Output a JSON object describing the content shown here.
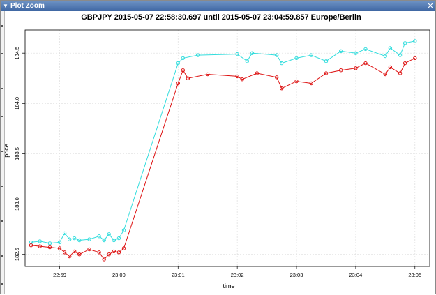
{
  "window": {
    "title": "Plot Zoom",
    "collapse_icon": "triangle-down-icon",
    "close_icon": "close-icon"
  },
  "chart_data": {
    "type": "line",
    "title": "GBPJPY  2015-05-07 22:58:30.697 until 2015-05-07 23:04:59.857 Europe/Berlin",
    "xlabel": "time",
    "ylabel": "price",
    "xlim": [
      "22:58:25",
      "23:05:15"
    ],
    "ylim": [
      182.38,
      184.73
    ],
    "x_ticks": [
      "22:59",
      "23:00",
      "23:01",
      "23:02",
      "23:03",
      "23:04",
      "23:05"
    ],
    "y_ticks": [
      "182.5",
      "183.0",
      "183.5",
      "184.0",
      "184.5"
    ],
    "grid": true,
    "legend": "none",
    "series": [
      {
        "color": "#33dddd",
        "marker": "circle",
        "x": [
          "22:58:31",
          "22:58:40",
          "22:58:50",
          "22:59:00",
          "22:59:05",
          "22:59:10",
          "22:59:15",
          "22:59:20",
          "22:59:30",
          "22:59:40",
          "22:59:45",
          "22:59:50",
          "22:59:55",
          "23:00:00",
          "23:00:05",
          "23:01:00",
          "23:01:05",
          "23:01:20",
          "23:02:00",
          "23:02:10",
          "23:02:15",
          "23:02:40",
          "23:02:45",
          "23:03:00",
          "23:03:15",
          "23:03:30",
          "23:03:45",
          "23:04:00",
          "23:04:10",
          "23:04:30",
          "23:04:35",
          "23:04:45",
          "23:04:50",
          "23:05:00"
        ],
        "y": [
          182.62,
          182.63,
          182.61,
          182.62,
          182.71,
          182.65,
          182.66,
          182.64,
          182.65,
          182.68,
          182.64,
          182.7,
          182.64,
          182.66,
          182.74,
          184.4,
          184.45,
          184.48,
          184.49,
          184.42,
          184.5,
          184.48,
          184.4,
          184.45,
          184.48,
          184.42,
          184.52,
          184.5,
          184.54,
          184.47,
          184.55,
          184.48,
          184.6,
          184.62
        ]
      },
      {
        "color": "#dd1111",
        "marker": "circle",
        "x": [
          "22:58:31",
          "22:58:40",
          "22:58:50",
          "22:59:00",
          "22:59:05",
          "22:59:10",
          "22:59:15",
          "22:59:20",
          "22:59:30",
          "22:59:40",
          "22:59:45",
          "22:59:50",
          "22:59:55",
          "23:00:00",
          "23:00:05",
          "23:01:00",
          "23:01:05",
          "23:01:10",
          "23:01:30",
          "23:02:00",
          "23:02:05",
          "23:02:20",
          "23:02:40",
          "23:02:45",
          "23:03:00",
          "23:03:15",
          "23:03:30",
          "23:03:45",
          "23:04:00",
          "23:04:10",
          "23:04:30",
          "23:04:35",
          "23:04:45",
          "23:04:50",
          "23:05:00"
        ],
        "y": [
          182.59,
          182.58,
          182.57,
          182.56,
          182.52,
          182.48,
          182.53,
          182.5,
          182.55,
          182.52,
          182.45,
          182.5,
          182.53,
          182.52,
          182.56,
          184.2,
          184.33,
          184.25,
          184.29,
          184.27,
          184.24,
          184.3,
          184.26,
          184.15,
          184.22,
          184.2,
          184.3,
          184.33,
          184.35,
          184.4,
          184.29,
          184.36,
          184.3,
          184.4,
          184.45
        ]
      }
    ]
  }
}
